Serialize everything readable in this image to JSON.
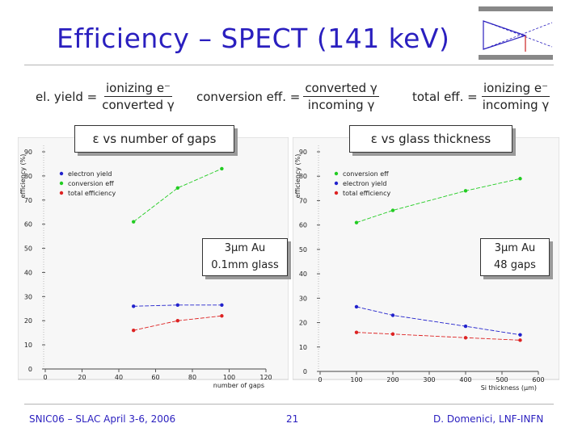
{
  "slide": {
    "title": "Efficiency – SPECT (141 keV)",
    "page_number": "21",
    "footer_left": "SNIC06 – SLAC April 3-6, 2006",
    "footer_right": "D. Domenici, LNF-INFN"
  },
  "formulas": {
    "el_yield": {
      "lhs": "el. yield =",
      "num": "ionizing e⁻",
      "den": "converted γ"
    },
    "conv_eff": {
      "lhs": "conversion eff. =",
      "num": "converted γ",
      "den": "incoming γ"
    },
    "total_eff": {
      "lhs": "total eff. =",
      "num": "ionizing e⁻",
      "den": "incoming γ"
    }
  },
  "labels": {
    "left_plot_label": "ε vs number of gaps",
    "right_plot_label": "ε vs glass thickness",
    "left_note_line1": "3μm Au",
    "left_note_line2": "0.1mm glass",
    "right_note_line1": "3μm Au",
    "right_note_line2": "48 gaps"
  },
  "colors": {
    "title": "#2a1fbf",
    "conversion": "#22cc22",
    "electron": "#2222cc",
    "total": "#dd2222"
  },
  "chart_data": [
    {
      "type": "line",
      "xlabel": "number of gaps",
      "ylabel": "efficiency (%)",
      "xlim": [
        0,
        120
      ],
      "ylim": [
        0,
        90
      ],
      "xticks": [
        0,
        20,
        40,
        60,
        80,
        100,
        120
      ],
      "yticks": [
        0,
        10,
        20,
        30,
        40,
        50,
        60,
        70,
        80,
        90
      ],
      "legend_position": "top-left",
      "x": [
        48,
        72,
        96
      ],
      "series": [
        {
          "name": "electron yield",
          "color": "#2222cc",
          "values": [
            26,
            26.5,
            26.5
          ]
        },
        {
          "name": "conversion eff",
          "color": "#22cc22",
          "values": [
            61,
            75,
            83
          ]
        },
        {
          "name": "total efficiency",
          "color": "#dd2222",
          "values": [
            16,
            20,
            22
          ]
        }
      ]
    },
    {
      "type": "line",
      "xlabel": "Si thickness (μm)",
      "ylabel": "efficiency (%)",
      "xlim": [
        0,
        600
      ],
      "ylim": [
        0,
        90
      ],
      "xticks": [
        0,
        100,
        200,
        300,
        400,
        500,
        600
      ],
      "yticks": [
        0,
        10,
        20,
        30,
        40,
        50,
        60,
        70,
        80,
        90
      ],
      "legend_position": "top-left",
      "x": [
        100,
        200,
        400,
        550
      ],
      "series": [
        {
          "name": "conversion eff",
          "color": "#22cc22",
          "values": [
            61,
            66,
            74,
            79
          ]
        },
        {
          "name": "electron yield",
          "color": "#2222cc",
          "values": [
            26.5,
            23,
            18.5,
            15
          ]
        },
        {
          "name": "total efficiency",
          "color": "#dd2222",
          "values": [
            16,
            15.3,
            13.8,
            12.8
          ]
        }
      ]
    }
  ]
}
